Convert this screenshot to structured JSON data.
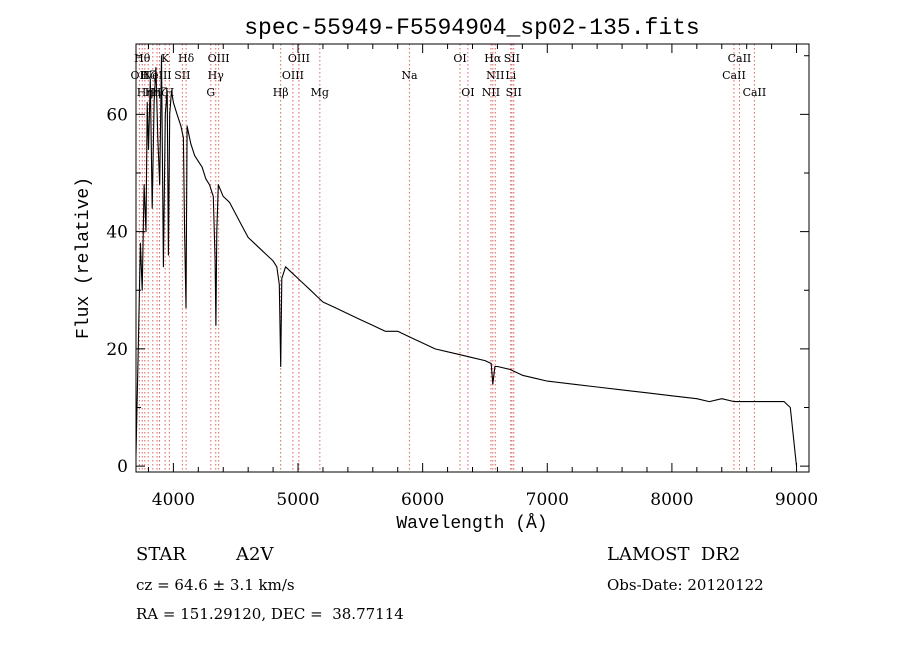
{
  "chart_data": {
    "type": "line",
    "title": "spec-55949-F5594904_sp02-135.fits",
    "xlabel": "Wavelength (Å)",
    "ylabel": "Flux (relative)",
    "xlim": [
      3700,
      9100
    ],
    "ylim": [
      -1,
      72
    ],
    "x_ticks": [
      4000,
      5000,
      6000,
      7000,
      8000,
      9000
    ],
    "y_ticks": [
      0,
      20,
      40,
      60
    ],
    "grid": false,
    "line_color": "#000000",
    "marker_color": "#e06060",
    "series": [
      {
        "x": [
          3700,
          3720,
          3735,
          3750,
          3765,
          3780,
          3790,
          3800,
          3815,
          3830,
          3845,
          3860,
          3875,
          3890,
          3905,
          3920,
          3935,
          3950,
          3960,
          3970,
          3985,
          4000,
          4030,
          4060,
          4080,
          4090,
          4101,
          4110,
          4140,
          4170,
          4200,
          4230,
          4260,
          4290,
          4320,
          4335,
          4341,
          4348,
          4360,
          4400,
          4450,
          4500,
          4550,
          4600,
          4650,
          4700,
          4750,
          4800,
          4830,
          4850,
          4861,
          4870,
          4900,
          4950,
          5000,
          5050,
          5100,
          5150,
          5200,
          5300,
          5400,
          5500,
          5600,
          5700,
          5800,
          5900,
          6000,
          6100,
          6200,
          6300,
          6400,
          6500,
          6550,
          6563,
          6580,
          6600,
          6700,
          6800,
          6900,
          7000,
          7200,
          7400,
          7600,
          7800,
          8000,
          8200,
          8300,
          8400,
          8500,
          8600,
          8700,
          8800,
          8900,
          8950,
          9000
        ],
        "y": [
          2,
          22,
          38,
          30,
          48,
          40,
          62,
          54,
          66,
          44,
          62,
          68,
          56,
          48,
          70,
          34,
          60,
          64,
          36,
          60,
          64,
          62,
          60,
          58,
          56,
          40,
          27,
          58,
          55,
          53,
          52,
          51,
          49,
          48,
          46,
          35,
          24,
          40,
          48,
          46,
          45,
          43,
          41,
          39,
          38,
          37,
          36,
          35,
          34,
          31,
          17,
          32,
          34,
          33,
          32,
          31,
          30,
          29,
          28,
          27,
          26,
          25,
          24,
          23,
          23,
          22,
          21,
          20,
          19.5,
          19,
          18.5,
          18,
          17.5,
          14,
          17,
          17,
          16.5,
          15.5,
          15,
          14.5,
          14,
          13.5,
          13,
          12.5,
          12,
          11.5,
          11,
          11.5,
          11,
          11,
          11,
          11,
          11,
          10,
          0
        ]
      }
    ],
    "line_markers": [
      {
        "wavelength": 3727,
        "label": "OII",
        "row": 2
      },
      {
        "wavelength": 3750,
        "label": "Hθ",
        "row": 1
      },
      {
        "wavelength": 3771,
        "label": "Hη",
        "row": 3
      },
      {
        "wavelength": 3798,
        "label": "Hζ",
        "row": 2
      },
      {
        "wavelength": 3835,
        "label": "Hη",
        "row": 3
      },
      {
        "wavelength": 3869,
        "label": "NeIII",
        "row": 2
      },
      {
        "wavelength": 3889,
        "label": "Hζ",
        "row": 3
      },
      {
        "wavelength": 3934,
        "label": "K",
        "row": 1
      },
      {
        "wavelength": 3968,
        "label": "H",
        "row": 3
      },
      {
        "wavelength": 4072,
        "label": "SII",
        "row": 2
      },
      {
        "wavelength": 4102,
        "label": "Hδ",
        "row": 1
      },
      {
        "wavelength": 4300,
        "label": "G",
        "row": 3
      },
      {
        "wavelength": 4340,
        "label": "Hγ",
        "row": 2
      },
      {
        "wavelength": 4363,
        "label": "OIII",
        "row": 1
      },
      {
        "wavelength": 4861,
        "label": "Hβ",
        "row": 3
      },
      {
        "wavelength": 4959,
        "label": "OIII",
        "row": 2
      },
      {
        "wavelength": 5007,
        "label": "OIII",
        "row": 1
      },
      {
        "wavelength": 5175,
        "label": "Mg",
        "row": 3
      },
      {
        "wavelength": 5894,
        "label": "Na",
        "row": 2
      },
      {
        "wavelength": 6300,
        "label": "OI",
        "row": 1
      },
      {
        "wavelength": 6363,
        "label": "OI",
        "row": 3
      },
      {
        "wavelength": 6548,
        "label": "NII",
        "row": 3
      },
      {
        "wavelength": 6563,
        "label": "Hα",
        "row": 1
      },
      {
        "wavelength": 6583,
        "label": "NII",
        "row": 2
      },
      {
        "wavelength": 6707,
        "label": "Li",
        "row": 2
      },
      {
        "wavelength": 6716,
        "label": "SII",
        "row": 1
      },
      {
        "wavelength": 6731,
        "label": "SII",
        "row": 3
      },
      {
        "wavelength": 8498,
        "label": "CaII",
        "row": 2
      },
      {
        "wavelength": 8542,
        "label": "CaII",
        "row": 1
      },
      {
        "wavelength": 8662,
        "label": "CaII",
        "row": 3
      }
    ]
  },
  "info": {
    "object_class": "STAR",
    "subclass": "A2V",
    "survey": "LAMOST  DR2",
    "redshift": "cz = 64.6 ± 3.1 km/s",
    "obs_date": "Obs-Date: 20120122",
    "coords": "RA = 151.29120, DEC =  38.77114"
  }
}
